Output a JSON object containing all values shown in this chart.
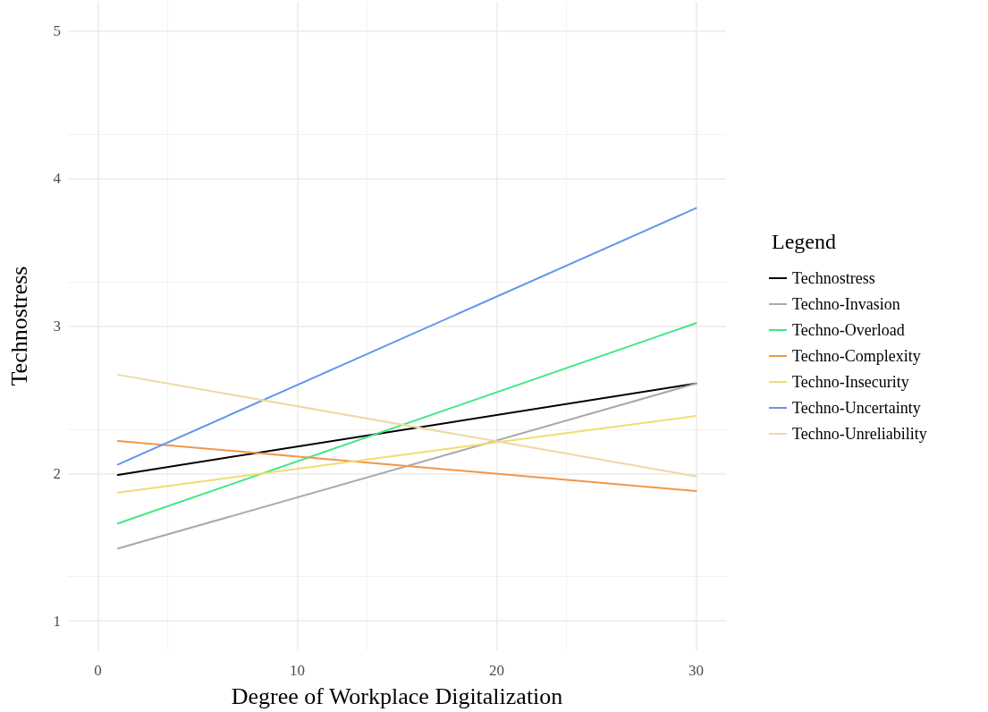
{
  "chart_data": {
    "type": "line",
    "xlabel": "Degree of Workplace Digitalization",
    "ylabel": "Technostress",
    "legend_title": "Legend",
    "x": [
      1,
      30
    ],
    "series": [
      {
        "name": "Technostress",
        "color": "#000000",
        "values": [
          1.99,
          2.61
        ]
      },
      {
        "name": "Techno-Invasion",
        "color": "#a9a9a9",
        "values": [
          1.49,
          2.61
        ]
      },
      {
        "name": "Techno-Overload",
        "color": "#3ee882",
        "values": [
          1.66,
          3.02
        ]
      },
      {
        "name": "Techno-Complexity",
        "color": "#f0964a",
        "values": [
          2.22,
          1.88
        ]
      },
      {
        "name": "Techno-Insecurity",
        "color": "#f2dc6e",
        "values": [
          1.87,
          2.39
        ]
      },
      {
        "name": "Techno-Uncertainty",
        "color": "#6495ed",
        "values": [
          2.06,
          3.8
        ]
      },
      {
        "name": "Techno-Unreliability",
        "color": "#eed8a6",
        "values": [
          2.67,
          1.98
        ]
      }
    ],
    "xlim": [
      -1.5,
      31.5
    ],
    "xticks": [
      0,
      10,
      20,
      30
    ],
    "ylim": [
      0.8,
      5.2
    ],
    "yticks": [
      1,
      2,
      3,
      4,
      5
    ],
    "grid": true,
    "legend": "right",
    "marker": "none",
    "line_style": "solid"
  }
}
